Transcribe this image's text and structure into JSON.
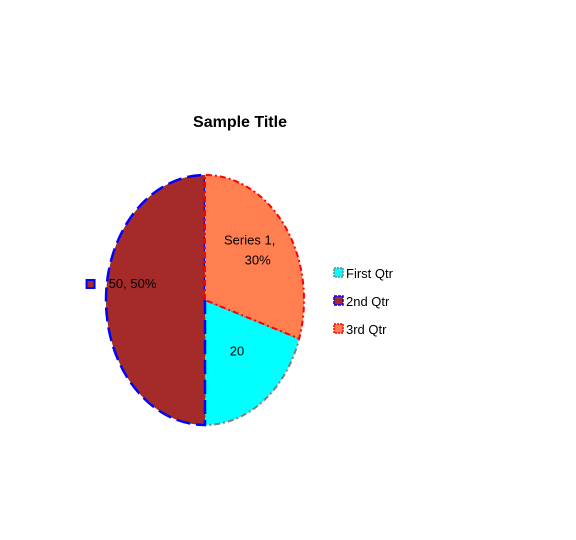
{
  "chart_data": {
    "type": "pie",
    "title": "Sample Title",
    "categories": [
      "First Qtr",
      "2nd Qtr",
      "3rd Qtr"
    ],
    "values": [
      20,
      50,
      30
    ],
    "colors": [
      "#00FFFF",
      "#A52A2A",
      "#FF7F50"
    ],
    "border_colors": [
      "#808080",
      "#0000FF",
      "#FF0000"
    ],
    "data_labels": [
      "20",
      "50, 50%",
      "Series 1, 30%"
    ],
    "legend": {
      "position": "right",
      "entries": [
        "First Qtr",
        "2nd Qtr",
        "3rd Qtr"
      ]
    }
  }
}
